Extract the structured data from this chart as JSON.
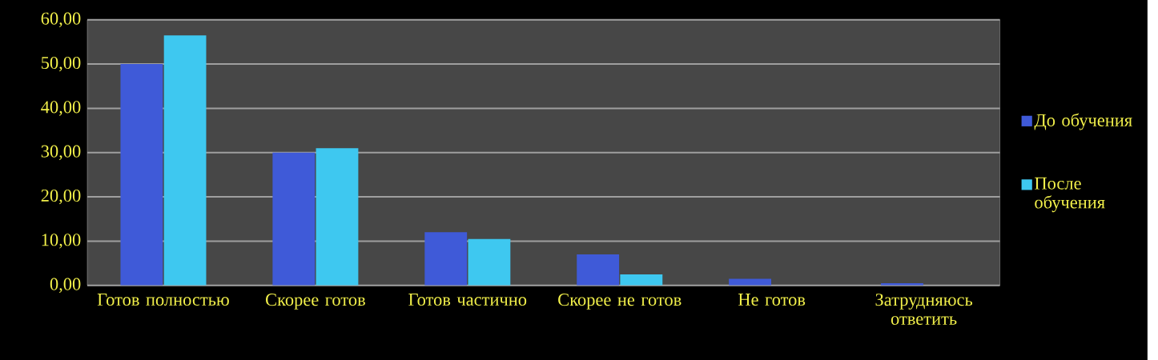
{
  "chart_data": {
    "type": "bar",
    "categories": [
      "Готов полностью",
      "Скорее готов",
      "Готов частично",
      "Скорее не готов",
      "Не готов",
      "Затрудняюсь ответить"
    ],
    "series": [
      {
        "name": "До обучения",
        "color": "#3f5ad8",
        "values": [
          50,
          30,
          12,
          7,
          1.5,
          0.5
        ]
      },
      {
        "name": "После обучения",
        "color": "#3ec8f0",
        "values": [
          56.5,
          31,
          10.5,
          2.5,
          0,
          0
        ]
      }
    ],
    "ylim": [
      0,
      60
    ],
    "yticks": [
      {
        "value": 0,
        "label": "0,00"
      },
      {
        "value": 10,
        "label": "10,00"
      },
      {
        "value": 20,
        "label": "20,00"
      },
      {
        "value": 30,
        "label": "30,00"
      },
      {
        "value": 40,
        "label": "40,00"
      },
      {
        "value": 50,
        "label": "50,00"
      },
      {
        "value": 60,
        "label": "60,00"
      }
    ],
    "grid": "y",
    "legend": "right"
  }
}
